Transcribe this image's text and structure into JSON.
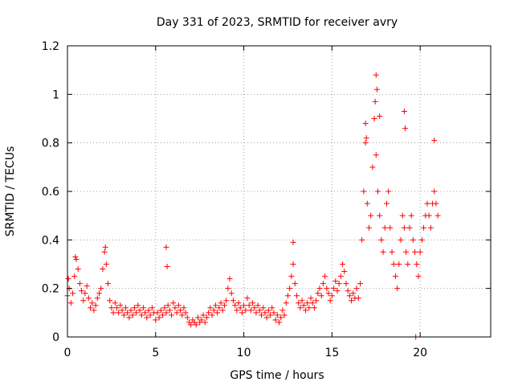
{
  "chart_data": {
    "type": "scatter",
    "title": "Day 331 of 2023, SRMTID for receiver avry",
    "xlabel": "GPS time / hours",
    "ylabel": "SRMTID / TECUs",
    "xlim": [
      0,
      24
    ],
    "ylim": [
      0,
      1.2
    ],
    "x_ticks": [
      0,
      5,
      10,
      15,
      20
    ],
    "x_tick_labels": [
      "0",
      "5",
      "10",
      "15",
      "20"
    ],
    "y_ticks": [
      0,
      0.2,
      0.4,
      0.6,
      0.8,
      1.0,
      1.2
    ],
    "y_tick_labels": [
      "0",
      "0.2",
      "0.4",
      "0.6",
      "0.8",
      "1",
      "1.2"
    ],
    "grid": true,
    "marker": "plus",
    "color": "#ff0000",
    "series": [
      {
        "name": "SRMTID",
        "x": [
          0.0,
          0.1,
          0.2,
          0.3,
          0.4,
          0.5,
          0.6,
          0.7,
          0.8,
          0.9,
          1.0,
          1.1,
          1.2,
          1.3,
          1.4,
          1.5,
          1.6,
          1.7,
          1.8,
          1.9,
          2.0,
          2.1,
          2.2,
          2.3,
          2.4,
          2.5,
          2.6,
          2.7,
          2.8,
          2.9,
          3.0,
          3.1,
          3.2,
          3.3,
          3.4,
          3.5,
          3.6,
          3.7,
          3.8,
          3.9,
          4.0,
          4.1,
          4.2,
          4.3,
          4.4,
          4.5,
          4.6,
          4.7,
          4.8,
          4.9,
          5.0,
          5.1,
          5.2,
          5.3,
          5.4,
          5.5,
          5.6,
          5.7,
          5.8,
          5.9,
          6.0,
          6.1,
          6.2,
          6.3,
          6.4,
          6.5,
          6.6,
          6.7,
          6.8,
          6.9,
          7.0,
          7.1,
          7.2,
          7.3,
          7.4,
          7.5,
          7.6,
          7.7,
          7.8,
          7.9,
          8.0,
          8.1,
          8.2,
          8.3,
          8.4,
          8.5,
          8.6,
          8.7,
          8.8,
          8.9,
          9.0,
          9.1,
          9.2,
          9.3,
          9.4,
          9.5,
          9.6,
          9.7,
          9.8,
          9.9,
          10.0,
          10.1,
          10.2,
          10.3,
          10.4,
          10.5,
          10.6,
          10.7,
          10.8,
          10.9,
          11.0,
          11.1,
          11.2,
          11.3,
          11.4,
          11.5,
          11.6,
          11.7,
          11.8,
          11.9,
          12.0,
          12.1,
          12.2,
          12.3,
          12.4,
          12.5,
          12.6,
          12.7,
          12.8,
          12.9,
          13.0,
          13.1,
          13.2,
          13.3,
          13.4,
          13.5,
          13.6,
          13.7,
          13.8,
          13.9,
          14.0,
          14.1,
          14.2,
          14.3,
          14.4,
          14.5,
          14.6,
          14.7,
          14.8,
          14.9,
          15.0,
          15.1,
          15.2,
          15.3,
          15.4,
          15.5,
          15.6,
          15.7,
          15.8,
          15.9,
          16.0,
          16.1,
          16.2,
          16.3,
          16.4,
          16.5,
          16.6,
          16.7,
          16.8,
          16.9,
          17.0,
          17.1,
          17.2,
          17.3,
          17.4,
          17.5,
          17.6,
          17.7,
          17.8,
          17.9,
          18.0,
          18.1,
          18.2,
          18.3,
          18.4,
          18.5,
          18.6,
          18.7,
          18.8,
          18.9,
          19.0,
          19.1,
          19.2,
          19.3,
          19.4,
          19.5,
          19.6,
          19.7,
          19.8,
          19.9,
          20.0,
          20.1,
          20.2,
          20.3,
          20.4,
          20.5,
          20.6,
          20.7,
          20.8,
          20.9,
          21.0,
          5.6,
          5.65,
          16.9,
          16.95,
          17.45,
          17.5,
          17.55,
          17.7,
          19.1,
          19.15,
          20.8,
          12.8,
          0.05,
          0.45,
          2.15,
          19.75
        ],
        "y": [
          0.17,
          0.2,
          0.14,
          0.18,
          0.25,
          0.32,
          0.28,
          0.22,
          0.19,
          0.15,
          0.18,
          0.21,
          0.16,
          0.12,
          0.14,
          0.11,
          0.13,
          0.16,
          0.18,
          0.2,
          0.28,
          0.35,
          0.3,
          0.22,
          0.15,
          0.12,
          0.1,
          0.14,
          0.12,
          0.1,
          0.13,
          0.11,
          0.09,
          0.12,
          0.1,
          0.08,
          0.11,
          0.09,
          0.12,
          0.1,
          0.13,
          0.11,
          0.09,
          0.12,
          0.1,
          0.08,
          0.11,
          0.09,
          0.12,
          0.1,
          0.07,
          0.1,
          0.08,
          0.11,
          0.09,
          0.12,
          0.1,
          0.13,
          0.11,
          0.09,
          0.14,
          0.12,
          0.1,
          0.13,
          0.11,
          0.09,
          0.12,
          0.1,
          0.08,
          0.06,
          0.05,
          0.07,
          0.06,
          0.05,
          0.08,
          0.06,
          0.07,
          0.09,
          0.06,
          0.08,
          0.1,
          0.12,
          0.09,
          0.11,
          0.13,
          0.1,
          0.12,
          0.14,
          0.11,
          0.13,
          0.15,
          0.2,
          0.24,
          0.18,
          0.15,
          0.13,
          0.11,
          0.14,
          0.12,
          0.1,
          0.13,
          0.11,
          0.16,
          0.13,
          0.11,
          0.14,
          0.12,
          0.1,
          0.13,
          0.11,
          0.09,
          0.12,
          0.1,
          0.08,
          0.11,
          0.09,
          0.12,
          0.1,
          0.07,
          0.09,
          0.06,
          0.08,
          0.11,
          0.09,
          0.14,
          0.17,
          0.2,
          0.25,
          0.3,
          0.22,
          0.17,
          0.14,
          0.12,
          0.15,
          0.13,
          0.11,
          0.14,
          0.12,
          0.16,
          0.14,
          0.12,
          0.15,
          0.18,
          0.2,
          0.17,
          0.22,
          0.25,
          0.2,
          0.18,
          0.15,
          0.17,
          0.2,
          0.23,
          0.19,
          0.22,
          0.25,
          0.3,
          0.27,
          0.22,
          0.19,
          0.17,
          0.15,
          0.18,
          0.16,
          0.2,
          0.16,
          0.22,
          0.4,
          0.6,
          0.8,
          0.55,
          0.45,
          0.5,
          0.7,
          0.9,
          0.75,
          0.6,
          0.5,
          0.4,
          0.35,
          0.45,
          0.55,
          0.6,
          0.45,
          0.35,
          0.3,
          0.25,
          0.2,
          0.3,
          0.4,
          0.5,
          0.45,
          0.35,
          0.3,
          0.45,
          0.5,
          0.4,
          0.35,
          0.3,
          0.25,
          0.35,
          0.4,
          0.45,
          0.5,
          0.55,
          0.5,
          0.45,
          0.55,
          0.6,
          0.55,
          0.5,
          0.37,
          0.29,
          0.88,
          0.82,
          0.97,
          1.08,
          1.02,
          0.91,
          0.93,
          0.86,
          0.81,
          0.39,
          0.24,
          0.33,
          0.37,
          0.0
        ]
      }
    ]
  }
}
